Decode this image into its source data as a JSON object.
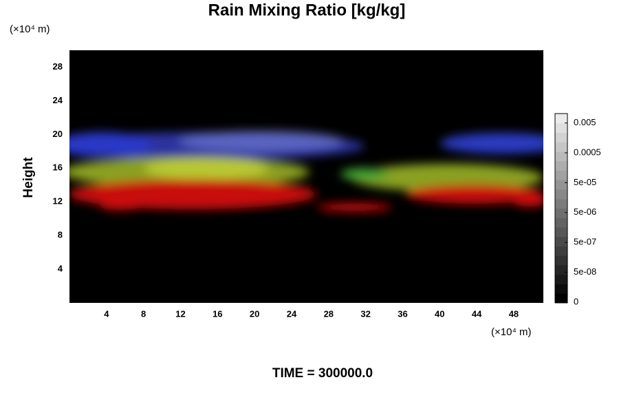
{
  "chart_data": {
    "type": "heatmap",
    "title": "Rain Mixing Ratio [kg/kg]",
    "y_unit": "(×10⁴ m)",
    "x_unit": "(×10⁴ m)",
    "ylabel": "Height",
    "xlim": [
      0,
      51.2
    ],
    "ylim": [
      0,
      30
    ],
    "xticks": [
      4,
      8,
      12,
      16,
      20,
      24,
      28,
      32,
      36,
      40,
      44,
      48
    ],
    "yticks": [
      4,
      8,
      12,
      16,
      20,
      24,
      28
    ],
    "colorbar": {
      "ticks": [
        0,
        {
          "value": 5e-08,
          "label": "5e-08"
        },
        {
          "value": 5e-07,
          "label": "5e-07"
        },
        {
          "value": 5e-06,
          "label": "5e-06"
        },
        {
          "value": 5e-05,
          "label": "5e-05"
        },
        0.0005,
        0.005
      ]
    },
    "annotation": "TIME = 300000.0"
  }
}
